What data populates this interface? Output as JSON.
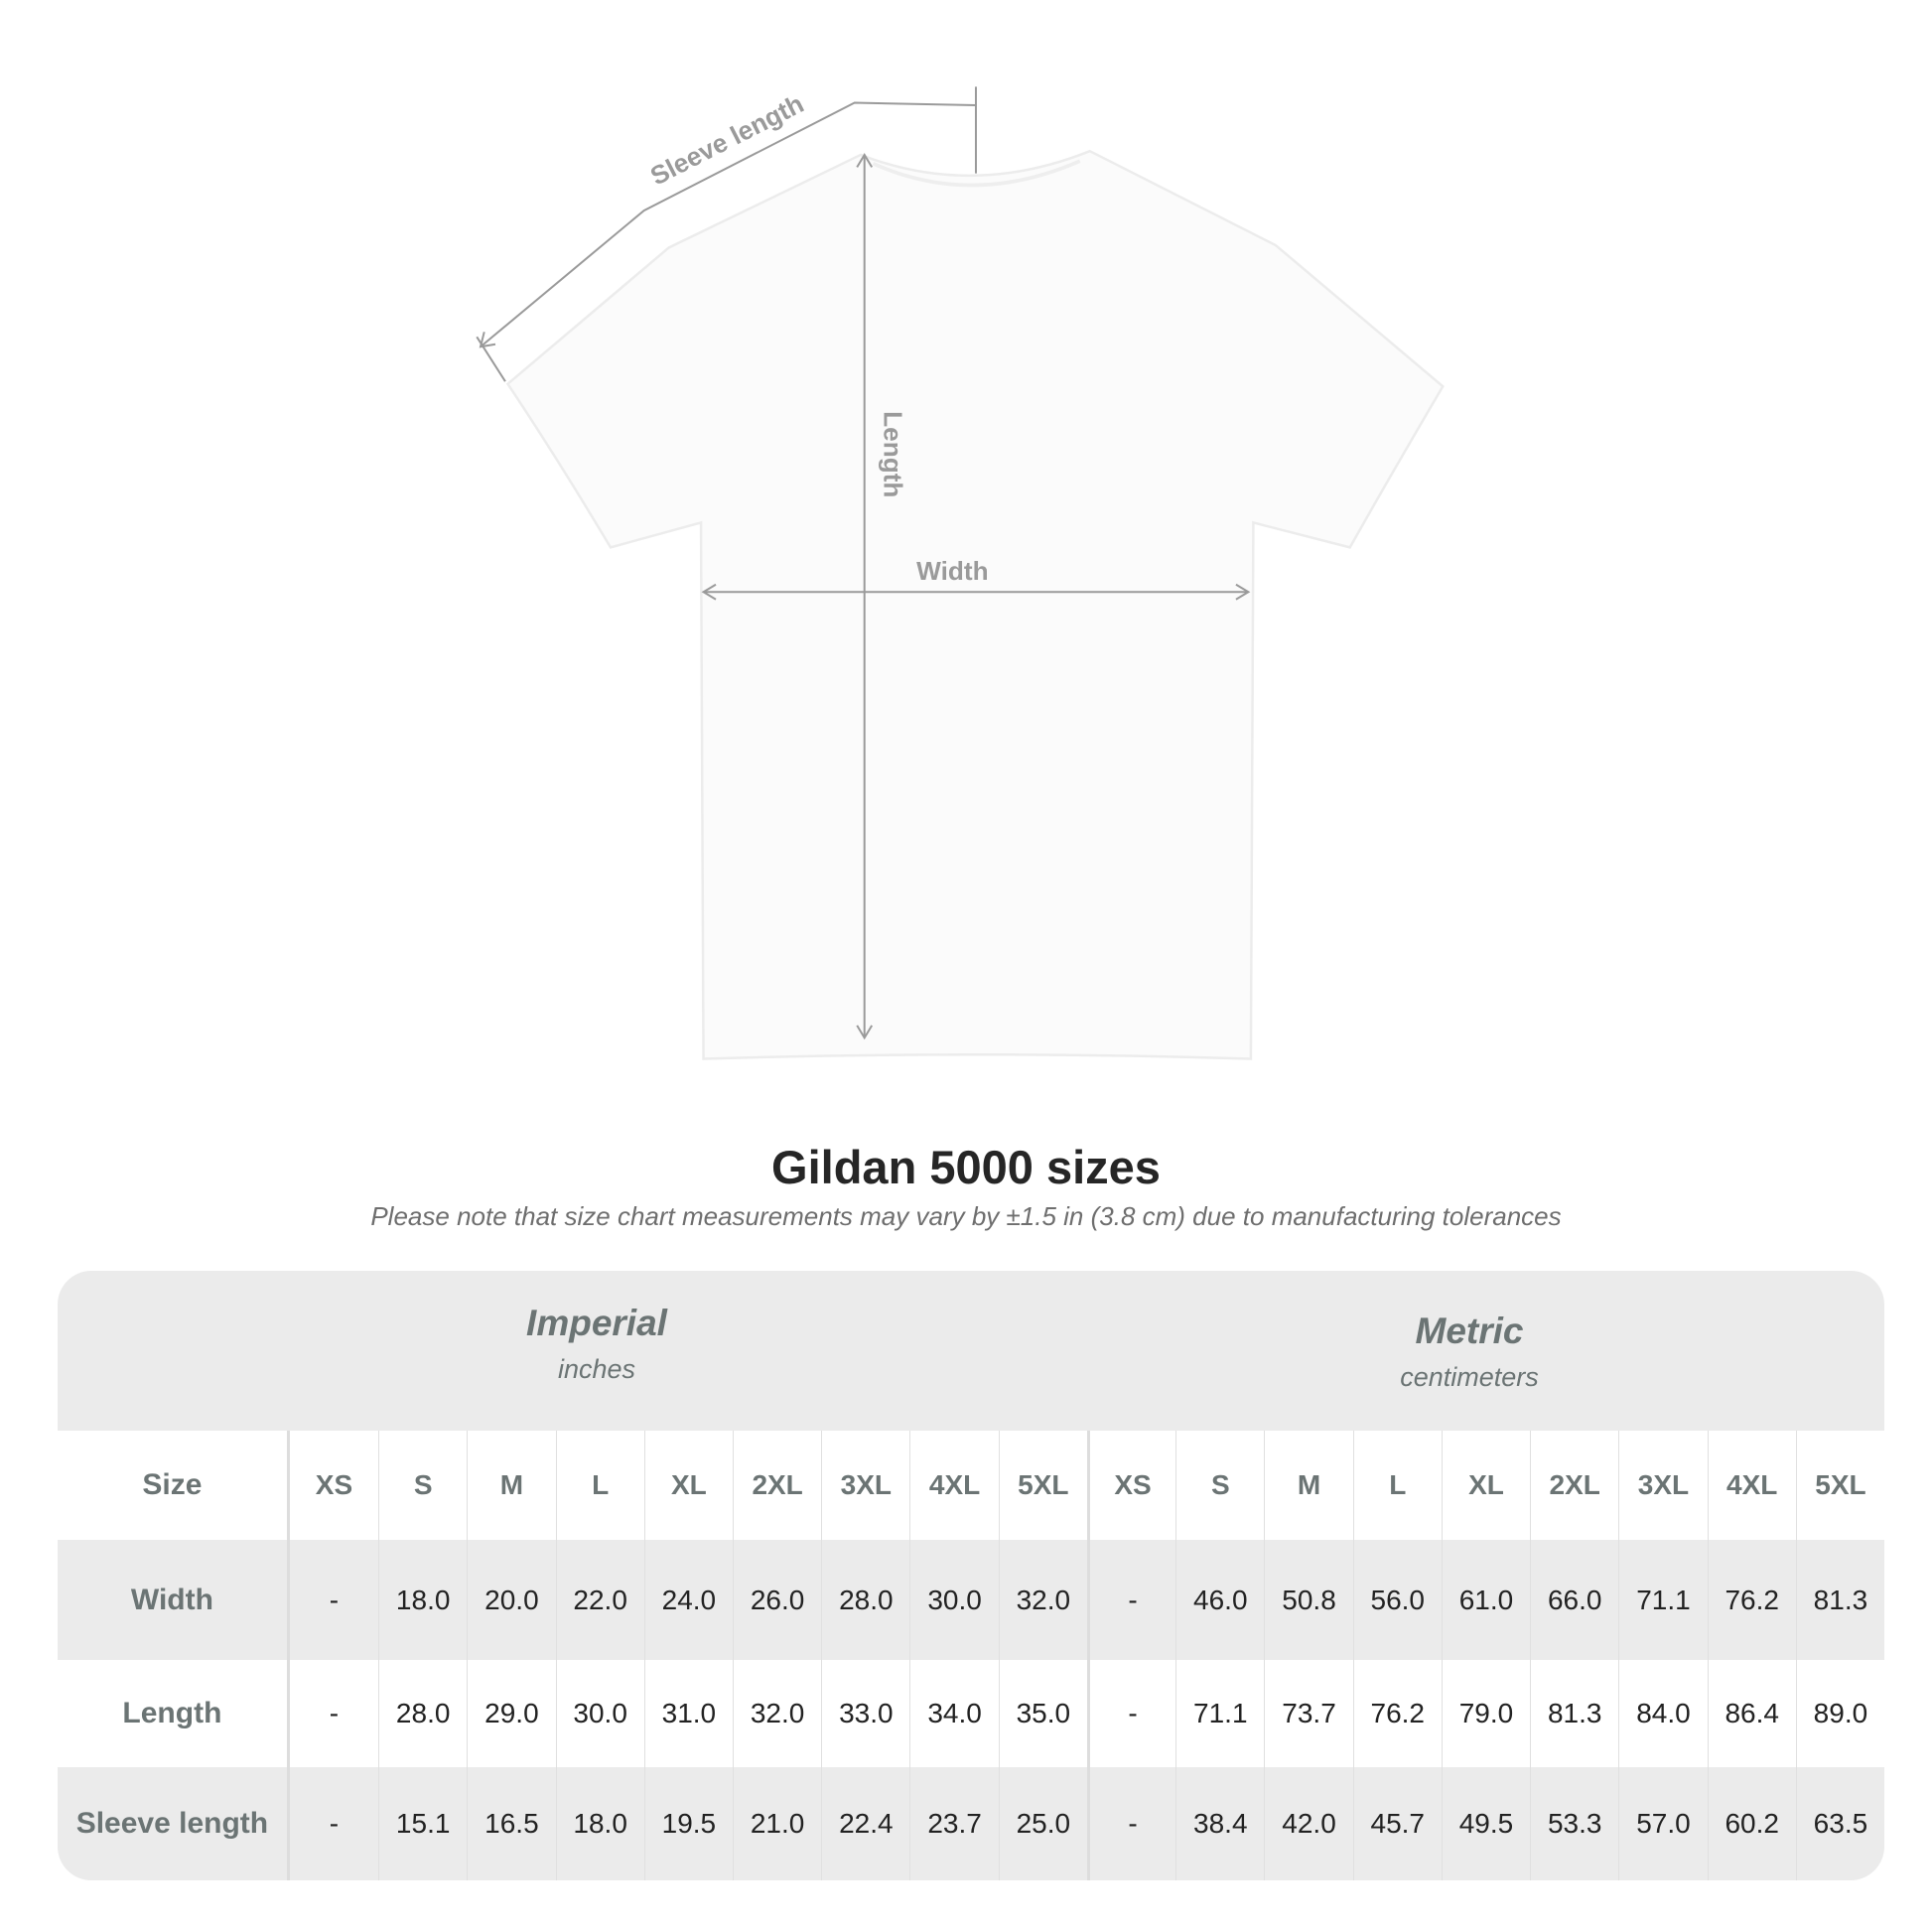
{
  "diagram": {
    "labels": {
      "sleeve_length": "Sleeve length",
      "length": "Length",
      "width": "Width"
    }
  },
  "title": "Gildan 5000 sizes",
  "note": "Please note that size chart measurements may vary by ±1.5 in (3.8 cm) due to manufacturing tolerances",
  "table": {
    "imperial": {
      "name": "Imperial",
      "unit": "inches"
    },
    "metric": {
      "name": "Metric",
      "unit": "centimeters"
    },
    "size_label": "Size",
    "sizes": [
      "XS",
      "S",
      "M",
      "L",
      "XL",
      "2XL",
      "3XL",
      "4XL",
      "5XL"
    ],
    "rows": [
      {
        "label": "Width",
        "imperial": [
          "-",
          "18.0",
          "20.0",
          "22.0",
          "24.0",
          "26.0",
          "28.0",
          "30.0",
          "32.0"
        ],
        "metric": [
          "-",
          "46.0",
          "50.8",
          "56.0",
          "61.0",
          "66.0",
          "71.1",
          "76.2",
          "81.3"
        ]
      },
      {
        "label": "Length",
        "imperial": [
          "-",
          "28.0",
          "29.0",
          "30.0",
          "31.0",
          "32.0",
          "33.0",
          "34.0",
          "35.0"
        ],
        "metric": [
          "-",
          "71.1",
          "73.7",
          "76.2",
          "79.0",
          "81.3",
          "84.0",
          "86.4",
          "89.0"
        ]
      },
      {
        "label": "Sleeve length",
        "imperial": [
          "-",
          "15.1",
          "16.5",
          "18.0",
          "19.5",
          "21.0",
          "22.4",
          "23.7",
          "25.0"
        ],
        "metric": [
          "-",
          "38.4",
          "42.0",
          "45.7",
          "49.5",
          "53.3",
          "57.0",
          "60.2",
          "63.5"
        ]
      }
    ]
  }
}
